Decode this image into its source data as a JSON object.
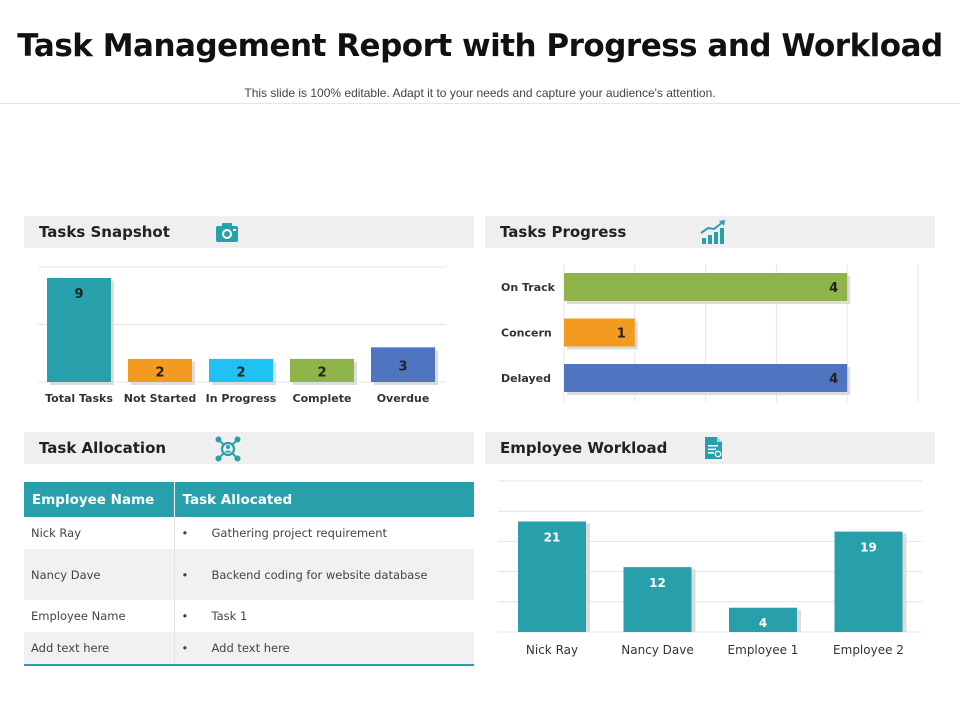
{
  "header": {
    "title": "Task Management Report with Progress and Workload",
    "subtitle": "This slide is 100% editable. Adapt it to your needs and capture your audience's attention."
  },
  "panels": {
    "snapshot": {
      "label": "Tasks Snapshot",
      "icon": "camera-icon"
    },
    "progress": {
      "label": "Tasks Progress",
      "icon": "bar-growth-icon"
    },
    "allocation": {
      "label": "Task Allocation",
      "icon": "team-network-icon"
    },
    "workload": {
      "label": "Employee Workload",
      "icon": "document-icon"
    }
  },
  "chart_data": [
    {
      "type": "bar",
      "id": "tasks-snapshot",
      "categories": [
        "Total Tasks",
        "Not Started",
        "In Progress",
        "Complete",
        "Overdue"
      ],
      "values": [
        9,
        2,
        2,
        2,
        3
      ],
      "colors": [
        "#27a0ab",
        "#f39a21",
        "#1fc2f2",
        "#8fb54a",
        "#4f74c0"
      ],
      "ylim": [
        0,
        9
      ]
    },
    {
      "type": "bar",
      "orientation": "horizontal",
      "id": "tasks-progress",
      "categories": [
        "On Track",
        "Concern",
        "Delayed"
      ],
      "values": [
        4,
        1,
        4
      ],
      "colors": [
        "#8fb54a",
        "#f39a21",
        "#4f74c0"
      ],
      "xlim": [
        0,
        5
      ]
    },
    {
      "type": "bar",
      "id": "employee-workload",
      "categories": [
        "Nick Ray",
        "Nancy Dave",
        "Employee 1",
        "Employee 2"
      ],
      "values": [
        21,
        12,
        4,
        19
      ],
      "colors": [
        "#27a0ab",
        "#27a0ab",
        "#27a0ab",
        "#27a0ab"
      ],
      "ylim": [
        0,
        25
      ]
    }
  ],
  "allocation_table": {
    "headers": [
      "Employee Name",
      "Task Allocated"
    ],
    "bullet": "•",
    "rows": [
      {
        "name": "Nick Ray",
        "task": "Gathering project requirement"
      },
      {
        "name": "Nancy Dave",
        "task": "Backend coding for website database"
      },
      {
        "name": "Employee Name",
        "task": "Task 1"
      },
      {
        "name": "Add text here",
        "task": "Add text here"
      }
    ]
  }
}
